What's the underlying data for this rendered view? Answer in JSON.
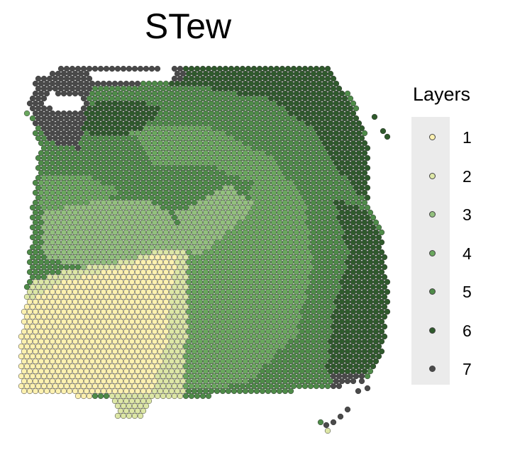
{
  "title": "STew",
  "chart_data": {
    "type": "scatter",
    "title": "STew",
    "legend": {
      "title": "Layers",
      "placement": "right"
    },
    "categories": [
      "1",
      "2",
      "3",
      "4",
      "5",
      "6",
      "7"
    ],
    "colors": {
      "1": "#fdf1b0",
      "2": "#dde7a6",
      "3": "#93c07e",
      "4": "#6aa75e",
      "5": "#4e8b48",
      "6": "#2f5a2c",
      "7": "#4a4a4a"
    },
    "grid": false,
    "axes_visible": false
  }
}
